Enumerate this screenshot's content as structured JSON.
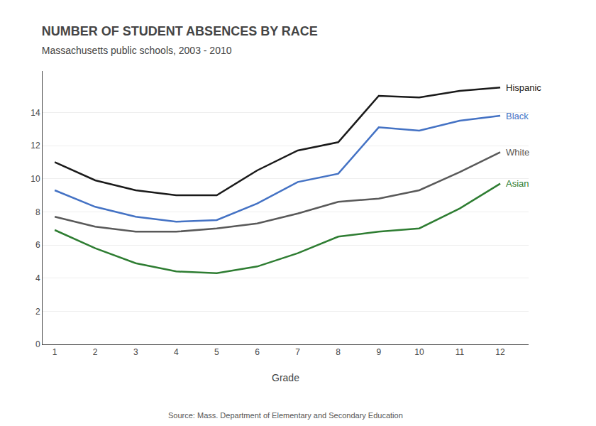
{
  "chart_data": {
    "type": "line",
    "title": "NUMBER OF STUDENT ABSENCES BY RACE",
    "subtitle": "Massachusetts public schools, 2003 - 2010",
    "source": "Source: Mass. Department of Elementary and Secondary Education",
    "xlabel": "Grade",
    "x": [
      1,
      2,
      3,
      4,
      5,
      6,
      7,
      8,
      9,
      10,
      11,
      12
    ],
    "series": [
      {
        "name": "Hispanic",
        "color": "#1a1a1a",
        "values": [
          11.0,
          9.9,
          9.3,
          9.0,
          9.0,
          10.5,
          11.7,
          12.2,
          15.0,
          14.9,
          15.3,
          15.5
        ]
      },
      {
        "name": "Black",
        "color": "#4472c4",
        "values": [
          9.3,
          8.3,
          7.7,
          7.4,
          7.5,
          8.5,
          9.8,
          10.3,
          13.1,
          12.9,
          13.5,
          13.8
        ]
      },
      {
        "name": "White",
        "color": "#595959",
        "values": [
          7.7,
          7.1,
          6.8,
          6.8,
          7.0,
          7.3,
          7.9,
          8.6,
          8.8,
          9.3,
          10.4,
          11.6
        ]
      },
      {
        "name": "Asian",
        "color": "#2e7d32",
        "values": [
          6.9,
          5.8,
          4.9,
          4.4,
          4.3,
          4.7,
          5.5,
          6.5,
          6.8,
          7.0,
          8.2,
          9.7
        ]
      }
    ],
    "xlim": [
      0.7,
      12.7
    ],
    "xticks": [
      1,
      2,
      3,
      4,
      5,
      6,
      7,
      8,
      9,
      10,
      11,
      12
    ],
    "ylim": [
      0,
      16.5
    ],
    "yticks": [
      0,
      2,
      4,
      6,
      8,
      10,
      12,
      14
    ],
    "grid": true
  }
}
